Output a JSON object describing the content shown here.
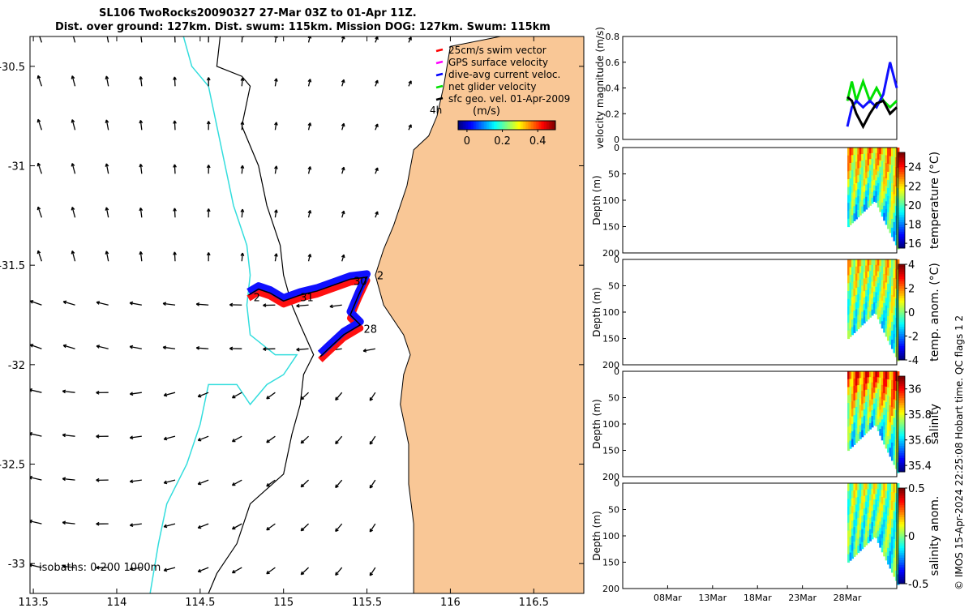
{
  "figure": {
    "title_line1": "SL106 TwoRocks20090327 27-Mar 03Z to 01-Apr 11Z.",
    "title_line2": "Dist. over ground: 127km. Dist. swum: 115km. Mission DOG: 127km. Swum: 115km",
    "credit": "© IMOS 15-Apr-2024 22:25:08 Hobart time. QC flags 1  2"
  },
  "colors": {
    "land": "#f9c796",
    "ocean": "#ffffff",
    "isobath_200": "#000000",
    "isobath_1000": "#33dddd",
    "swim_vector": "#ff0000",
    "gps_velocity": "#ff00ff",
    "dive_avg_current": "#0000ff",
    "net_glider_velocity": "#00e000",
    "sfc_geo_vel": "#000000",
    "track_blue": "#1010ff",
    "track_red": "#ff1010"
  },
  "chart_data": [
    {
      "type": "map",
      "name": "glider-track-map",
      "xlim": [
        113.48,
        116.8
      ],
      "ylim": [
        -33.15,
        -30.35
      ],
      "xticks": [
        113.5,
        114,
        114.5,
        115,
        115.5,
        116,
        116.5
      ],
      "xtick_labels": [
        "113.5",
        "114",
        "114.5",
        "115",
        "115.5",
        "116",
        "116.5"
      ],
      "yticks": [
        -30.5,
        -31,
        -31.5,
        -32,
        -32.5,
        -33
      ],
      "ytick_labels": [
        "-30.5",
        "-31",
        "-31.5",
        "-32",
        "-32.5",
        "-33"
      ],
      "legend": {
        "position": "top-right",
        "entries": [
          {
            "label": "25cm/s swim vector",
            "color": "#ff0000"
          },
          {
            "label": "GPS surface velocity",
            "color": "#ff00ff"
          },
          {
            "label": "dive-avg current veloc.",
            "color": "#0000ff"
          },
          {
            "label": "net glider velocity",
            "color": "#00e000"
          },
          {
            "label": "sfc geo. vel. 01-Apr-2009",
            "color": "#000000"
          }
        ]
      },
      "colorbar": {
        "label": "(m/s)",
        "side_label": "4h",
        "ticks": [
          0,
          0.2,
          0.4
        ],
        "tick_labels": [
          "0",
          "0.2",
          "0.4"
        ],
        "range": [
          -0.05,
          0.5
        ]
      },
      "isobaths_label": "isobaths: 0   200  1000m",
      "coastline": [
        [
          116.0,
          -30.4
        ],
        [
          115.98,
          -30.5
        ],
        [
          115.96,
          -30.6
        ],
        [
          115.92,
          -30.75
        ],
        [
          115.87,
          -30.85
        ],
        [
          115.78,
          -30.92
        ],
        [
          115.74,
          -31.1
        ],
        [
          115.66,
          -31.3
        ],
        [
          115.6,
          -31.42
        ],
        [
          115.55,
          -31.55
        ],
        [
          115.6,
          -31.7
        ],
        [
          115.72,
          -31.85
        ],
        [
          115.76,
          -31.95
        ],
        [
          115.72,
          -32.05
        ],
        [
          115.7,
          -32.2
        ],
        [
          115.75,
          -32.4
        ],
        [
          115.75,
          -32.6
        ],
        [
          115.78,
          -32.8
        ],
        [
          115.78,
          -33.15
        ]
      ],
      "isobath_200": [
        [
          114.62,
          -30.35
        ],
        [
          114.6,
          -30.5
        ],
        [
          114.75,
          -30.55
        ],
        [
          114.8,
          -30.6
        ],
        [
          114.75,
          -30.8
        ],
        [
          114.85,
          -31.0
        ],
        [
          114.9,
          -31.2
        ],
        [
          114.98,
          -31.4
        ],
        [
          115.0,
          -31.55
        ],
        [
          115.05,
          -31.7
        ],
        [
          115.1,
          -31.8
        ],
        [
          115.18,
          -31.95
        ],
        [
          115.12,
          -32.05
        ],
        [
          115.1,
          -32.2
        ],
        [
          115.05,
          -32.35
        ],
        [
          115.0,
          -32.55
        ],
        [
          114.8,
          -32.7
        ],
        [
          114.72,
          -32.9
        ],
        [
          114.6,
          -33.05
        ],
        [
          114.55,
          -33.15
        ]
      ],
      "isobath_1000": [
        [
          114.4,
          -30.35
        ],
        [
          114.45,
          -30.5
        ],
        [
          114.55,
          -30.6
        ],
        [
          114.6,
          -30.8
        ],
        [
          114.65,
          -31.0
        ],
        [
          114.7,
          -31.2
        ],
        [
          114.78,
          -31.4
        ],
        [
          114.8,
          -31.55
        ],
        [
          114.78,
          -31.7
        ],
        [
          114.8,
          -31.85
        ],
        [
          114.95,
          -31.95
        ],
        [
          115.08,
          -31.95
        ],
        [
          115.0,
          -32.05
        ],
        [
          114.9,
          -32.1
        ],
        [
          114.8,
          -32.2
        ],
        [
          114.72,
          -32.1
        ],
        [
          114.55,
          -32.1
        ],
        [
          114.5,
          -32.3
        ],
        [
          114.42,
          -32.5
        ],
        [
          114.3,
          -32.7
        ],
        [
          114.25,
          -32.9
        ],
        [
          114.2,
          -33.15
        ]
      ],
      "track": [
        [
          114.79,
          -31.65
        ],
        [
          114.85,
          -31.62
        ],
        [
          114.92,
          -31.64
        ],
        [
          115.0,
          -31.68
        ],
        [
          115.1,
          -31.65
        ],
        [
          115.2,
          -31.63
        ],
        [
          115.3,
          -31.6
        ],
        [
          115.4,
          -31.57
        ],
        [
          115.5,
          -31.56
        ],
        [
          115.45,
          -31.65
        ],
        [
          115.4,
          -31.75
        ],
        [
          115.46,
          -31.8
        ],
        [
          115.36,
          -31.85
        ],
        [
          115.27,
          -31.92
        ],
        [
          115.22,
          -31.96
        ]
      ],
      "track_labels": [
        {
          "text": "2",
          "lon": 114.82,
          "lat": -31.68
        },
        {
          "text": "31",
          "lon": 115.1,
          "lat": -31.68
        },
        {
          "text": "30",
          "lon": 115.42,
          "lat": -31.6
        },
        {
          "text": "2",
          "lon": 115.56,
          "lat": -31.57
        },
        {
          "text": "28",
          "lon": 115.48,
          "lat": -31.84
        }
      ]
    },
    {
      "type": "line",
      "name": "velocity-magnitude",
      "ylabel": "velocity magnitude (m/s)",
      "ylim": [
        0,
        0.8
      ],
      "yticks": [
        0,
        0.2,
        0.4,
        0.6,
        0.8
      ],
      "ytick_labels": [
        "0",
        "0.2",
        "0.4",
        "0.6",
        "0.8"
      ],
      "xlim": [
        0,
        6.1
      ],
      "x_unit": "days since 03-Mar",
      "series": [
        {
          "name": "net glider velocity",
          "color": "#00e000",
          "x": [
            5.0,
            5.1,
            5.2,
            5.35,
            5.5,
            5.65,
            5.8,
            5.95,
            6.1
          ],
          "values": [
            0.3,
            0.45,
            0.3,
            0.45,
            0.3,
            0.4,
            0.3,
            0.25,
            0.3
          ]
        },
        {
          "name": "dive-avg current veloc.",
          "color": "#1010ff",
          "x": [
            5.0,
            5.1,
            5.2,
            5.35,
            5.5,
            5.65,
            5.8,
            5.95,
            6.1
          ],
          "values": [
            0.1,
            0.25,
            0.3,
            0.25,
            0.3,
            0.25,
            0.35,
            0.6,
            0.4
          ]
        },
        {
          "name": "sfc geo. vel.",
          "color": "#000000",
          "x": [
            5.0,
            5.1,
            5.2,
            5.35,
            5.5,
            5.65,
            5.8,
            5.95,
            6.1
          ],
          "values": [
            0.33,
            0.3,
            0.2,
            0.1,
            0.2,
            0.28,
            0.3,
            0.2,
            0.25
          ]
        }
      ]
    },
    {
      "type": "heatmap",
      "name": "temperature-section",
      "ylabel": "Depth (m)",
      "ylim": [
        200,
        0
      ],
      "yticks": [
        0,
        50,
        100,
        150,
        200
      ],
      "ytick_labels": [
        "0",
        "50",
        "100",
        "150",
        "200"
      ],
      "colorbar": {
        "label": "temperature (°C)",
        "range": [
          15.5,
          25.5
        ],
        "ticks": [
          16,
          18,
          20,
          22,
          24
        ],
        "tick_labels": [
          "16",
          "18",
          "20",
          "22",
          "24"
        ]
      },
      "profile_x": [
        5.0,
        5.6,
        5.75,
        6.15
      ],
      "max_depth": [
        150,
        100,
        130,
        200
      ],
      "value_surface": 22.5,
      "value_deep": 19.0
    },
    {
      "type": "heatmap",
      "name": "temperature-anomaly-section",
      "ylabel": "Depth (m)",
      "ylim": [
        200,
        0
      ],
      "yticks": [
        0,
        50,
        100,
        150,
        200
      ],
      "ytick_labels": [
        "0",
        "50",
        "100",
        "150",
        "200"
      ],
      "colorbar": {
        "label": "temp. anom. (°C)",
        "range": [
          -4,
          4
        ],
        "ticks": [
          -4,
          -2,
          0,
          2,
          4
        ],
        "tick_labels": [
          "-4",
          "-2",
          "0",
          "2",
          "4"
        ]
      },
      "profile_x": [
        5.0,
        5.6,
        5.75,
        6.15
      ],
      "max_depth": [
        150,
        100,
        130,
        200
      ],
      "value_surface": 1.0,
      "value_deep": -0.8
    },
    {
      "type": "heatmap",
      "name": "salinity-section",
      "ylabel": "Depth (m)",
      "ylim": [
        200,
        0
      ],
      "yticks": [
        0,
        50,
        100,
        150,
        200
      ],
      "ytick_labels": [
        "0",
        "50",
        "100",
        "150",
        "200"
      ],
      "colorbar": {
        "label": "salinity",
        "range": [
          35.35,
          36.1
        ],
        "ticks": [
          35.4,
          35.6,
          35.8,
          36
        ],
        "tick_labels": [
          "35.4",
          "35.6",
          "35.8",
          "36"
        ]
      },
      "profile_x": [
        5.0,
        5.6,
        5.75,
        6.15
      ],
      "max_depth": [
        150,
        100,
        130,
        200
      ],
      "value_surface": 35.95,
      "value_deep": 35.6
    },
    {
      "type": "heatmap",
      "name": "salinity-anomaly-section",
      "ylabel": "Depth (m)",
      "ylim": [
        200,
        0
      ],
      "yticks": [
        0,
        50,
        100,
        150,
        200
      ],
      "ytick_labels": [
        "0",
        "50",
        "100",
        "150",
        "200"
      ],
      "colorbar": {
        "label": "salinity anom.",
        "range": [
          -0.5,
          0.5
        ],
        "ticks": [
          -0.5,
          0,
          0.5
        ],
        "tick_labels": [
          "-0.5",
          "0",
          "0.5"
        ]
      },
      "profile_x": [
        5.0,
        5.6,
        5.75,
        6.15
      ],
      "max_depth": [
        150,
        100,
        130,
        200
      ],
      "value_surface": 0.05,
      "value_deep": -0.1
    },
    {
      "type": "time-axis",
      "name": "time-axis",
      "xlim": [
        0,
        6.1
      ],
      "ticks": [
        1,
        2,
        3,
        4,
        5
      ],
      "tick_labels": [
        "08Mar",
        "13Mar",
        "18Mar",
        "23Mar",
        "28Mar"
      ]
    }
  ]
}
